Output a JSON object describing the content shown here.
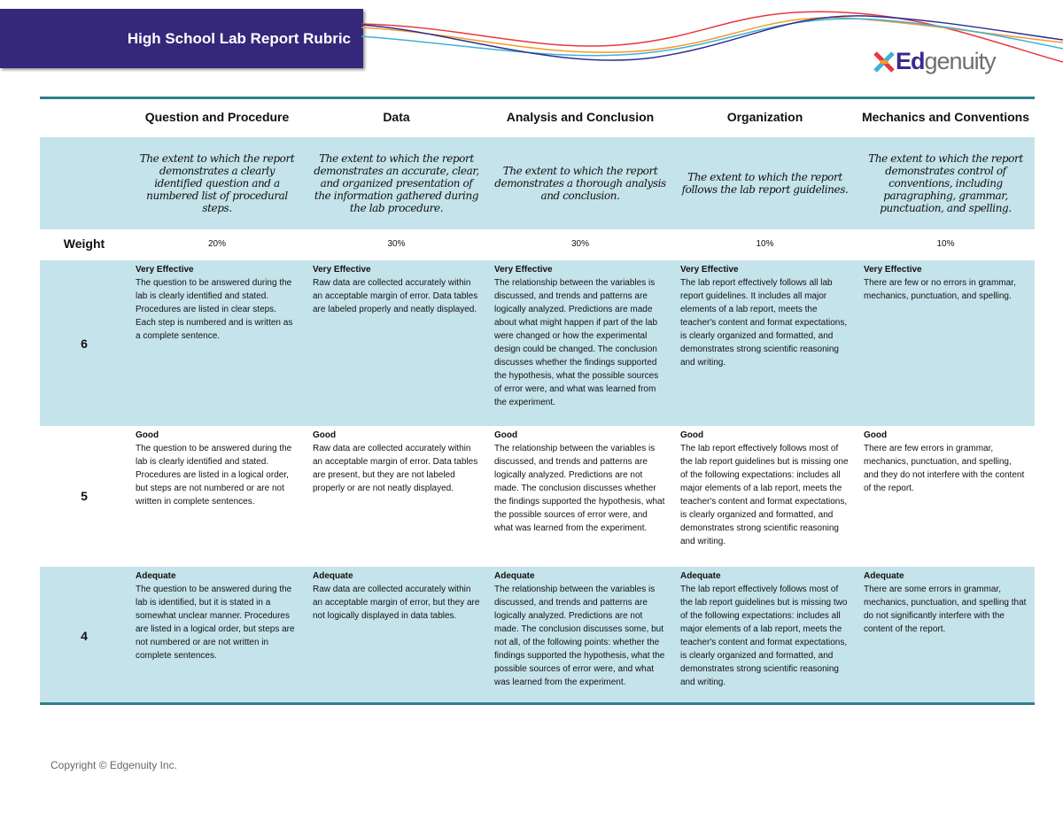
{
  "header": {
    "title": "High School Lab Report Rubric",
    "logo_text_1": "Ed",
    "logo_text_2": "genuity",
    "accent": "#35277a",
    "rule_color": "#2f7f8c"
  },
  "columns": [
    "Question and Procedure",
    "Data",
    "Analysis and Conclusion",
    "Organization",
    "Mechanics and Conventions"
  ],
  "descriptions": [
    "The extent to which the report demonstrates a clearly identified question and a numbered list of procedural steps.",
    "The extent to which the report demonstrates an accurate, clear, and organized presentation of the information gathered during the lab procedure.",
    "The extent to which the report demonstrates a thorough analysis and conclusion.",
    "The extent to which the report follows the lab report guidelines.",
    "The extent to which the report demonstrates control of conventions, including paragraphing, grammar, punctuation, and spelling."
  ],
  "weight": {
    "label": "Weight",
    "values": [
      "20%",
      "30%",
      "30%",
      "10%",
      "10%"
    ]
  },
  "rows": [
    {
      "score": "6",
      "cells": [
        {
          "level": "Very Effective",
          "text": "The question to be answered during the lab is clearly identified and stated. Procedures are listed in clear steps. Each step is numbered and is written as a complete sentence."
        },
        {
          "level": "Very Effective",
          "text": "Raw data are collected accurately within an acceptable margin of error. Data tables are labeled properly and neatly displayed."
        },
        {
          "level": "Very Effective",
          "text": "The relationship between the variables is discussed, and trends and patterns are logically analyzed. Predictions are made about what might happen if part of the lab were changed or how the experimental design could be changed. The conclusion discusses whether the findings supported the hypothesis, what the possible sources of error were, and what was learned from the experiment."
        },
        {
          "level": "Very Effective",
          "text": "The lab report effectively follows all lab report guidelines. It includes all major elements of a lab report, meets the teacher's content and format expectations, is clearly organized and formatted, and demonstrates strong scientific reasoning and writing."
        },
        {
          "level": "Very Effective",
          "text": "There are few or no errors in grammar, mechanics, punctuation, and spelling."
        }
      ]
    },
    {
      "score": "5",
      "cells": [
        {
          "level": "Good",
          "text": "The question to be answered during the lab is clearly identified and stated. Procedures are listed in a logical order, but steps are not numbered or are not written in complete sentences."
        },
        {
          "level": "Good",
          "text": "Raw data are collected accurately within an acceptable margin of error. Data tables are present, but they are not labeled properly or are not neatly displayed."
        },
        {
          "level": "Good",
          "text": "The relationship between the variables is discussed, and trends and patterns are logically analyzed. Predictions are not made. The conclusion discusses whether the findings supported the hypothesis, what the possible sources of error were, and what was learned from the experiment."
        },
        {
          "level": "Good",
          "text": "The lab report effectively follows most of the lab report guidelines but is missing one of the following expectations: includes all major elements of a lab report, meets the teacher's content and format expectations, is clearly organized and formatted, and demonstrates strong scientific reasoning and writing."
        },
        {
          "level": "Good",
          "text": "There are few errors in grammar, mechanics, punctuation, and spelling, and they do not interfere with the content of the report."
        }
      ]
    },
    {
      "score": "4",
      "cells": [
        {
          "level": "Adequate",
          "text": "The question to be answered during the lab is identified, but it is stated in a somewhat unclear manner. Procedures are listed in a logical order, but steps are not numbered or are not written in complete sentences."
        },
        {
          "level": "Adequate",
          "text": "Raw data are collected accurately within an acceptable margin of error, but they are not logically displayed in data tables."
        },
        {
          "level": "Adequate",
          "text": "The relationship between the variables is discussed, and trends and patterns are logically analyzed. Predictions are not made. The conclusion discusses some, but not all, of the following points: whether the findings supported the hypothesis, what the possible sources of error were, and what was learned from the experiment."
        },
        {
          "level": "Adequate",
          "text": "The lab report effectively follows most of the lab report guidelines but is missing two of the following expectations: includes all major elements of a lab report, meets the teacher's content and format expectations, is clearly organized and formatted, and demonstrates strong scientific reasoning and writing."
        },
        {
          "level": "Adequate",
          "text": "There are some errors in grammar, mechanics, punctuation, and spelling that do not significantly interfere with the content of the report."
        }
      ]
    }
  ],
  "footer": {
    "copyright": "Copyright  © Edgenuity Inc."
  }
}
